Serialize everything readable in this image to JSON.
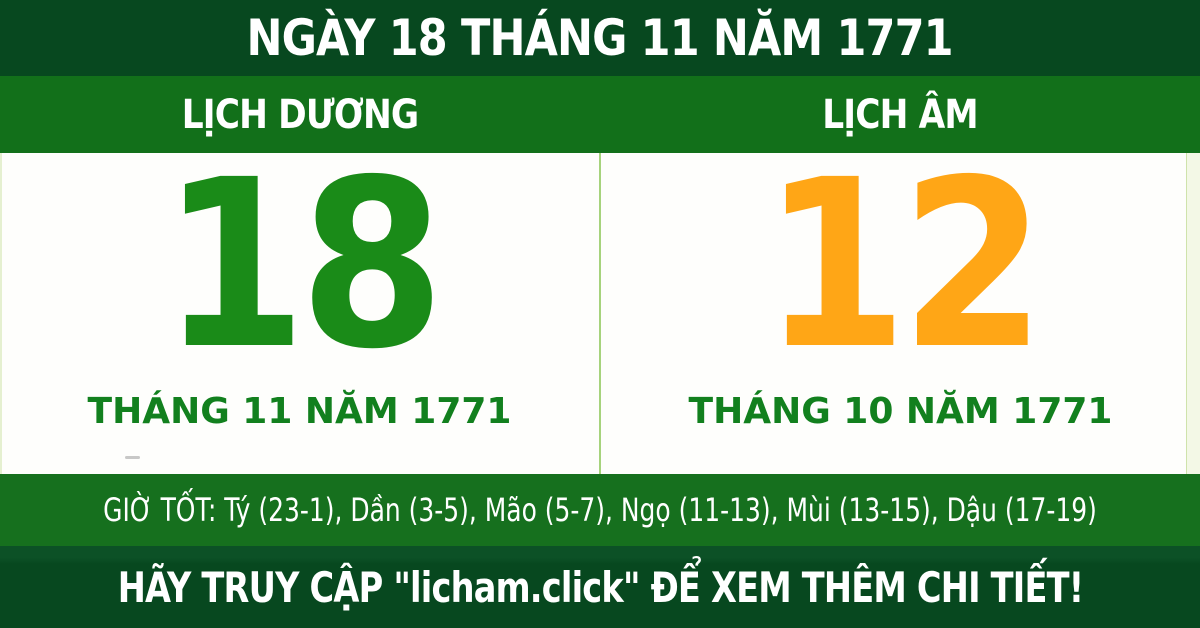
{
  "header": {
    "title": "NGÀY 18 THÁNG 11 NĂM 1771"
  },
  "calendar": {
    "solar": {
      "label": "LỊCH DƯƠNG",
      "day": "18",
      "month_year": "THÁNG 11 NĂM 1771"
    },
    "lunar": {
      "label": "LỊCH ÂM",
      "day": "12",
      "month_year": "THÁNG 10 NĂM 1771"
    }
  },
  "good_hours": {
    "text": "GIỜ TỐT: Tý (23-1), Dần (3-5), Mão (5-7), Ngọ (11-13), Mùi (13-15), Dậu (17-19)"
  },
  "footer": {
    "message": "HÃY TRUY CẬP \"licham.click\" ĐỂ XEM THÊM CHI TIẾT!"
  },
  "colors": {
    "dark_green": "#07481f",
    "band_green": "#12701a",
    "hours_green": "#16701e",
    "footer_green": "#07481f",
    "day_solar_green": "#1a8b18",
    "day_lunar_orange": "#ffa616",
    "month_green": "#12801e",
    "divider_green": "#a6d37c",
    "panel_bg": "#fefefc"
  }
}
